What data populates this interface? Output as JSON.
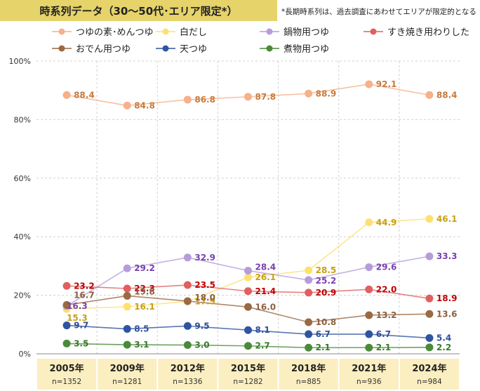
{
  "title": "時系列データ（30〜50代･エリア限定*）",
  "note": "*長期時系列は、過去調査にあわせてエリアが限定的となる",
  "chart_data": {
    "type": "line",
    "categories": [
      "2005年",
      "2009年",
      "2012年",
      "2015年",
      "2018年",
      "2021年",
      "2024年"
    ],
    "sample_sizes": [
      "n=1352",
      "n=1281",
      "n=1336",
      "n=1282",
      "n=885",
      "n=936",
      "n=984"
    ],
    "y_ticks": [
      "0%",
      "20%",
      "40%",
      "60%",
      "80%",
      "100%"
    ],
    "ylim": [
      0,
      100
    ],
    "grid": true,
    "legend_position": "top",
    "series": [
      {
        "name": "つゆの素･めんつゆ",
        "color": "#f6b08a",
        "label_color": "#c87a3a",
        "values": [
          88.4,
          84.8,
          86.8,
          87.8,
          88.9,
          92.1,
          88.4
        ]
      },
      {
        "name": "白だし",
        "color": "#fde070",
        "label_color": "#c9a012",
        "values": [
          15.3,
          16.1,
          17.9,
          26.1,
          28.5,
          44.9,
          46.1
        ]
      },
      {
        "name": "鍋物用つゆ",
        "color": "#b79cdb",
        "label_color": "#7a40b0",
        "values": [
          16.3,
          29.2,
          32.9,
          28.4,
          25.2,
          29.6,
          33.3
        ]
      },
      {
        "name": "すき焼き用わりした",
        "color": "#e06060",
        "label_color": "#c00000",
        "values": [
          23.2,
          22.3,
          23.5,
          21.4,
          20.9,
          22.0,
          18.9
        ]
      },
      {
        "name": "おでん用つゆ",
        "color": "#9a6a42",
        "label_color": "#8c6040",
        "values": [
          16.7,
          19.8,
          18.0,
          16.0,
          10.8,
          13.2,
          13.6
        ]
      },
      {
        "name": "天つゆ",
        "color": "#2f55a0",
        "label_color": "#2f4f9a",
        "values": [
          9.7,
          8.5,
          9.5,
          8.1,
          6.7,
          6.7,
          5.4
        ]
      },
      {
        "name": "煮物用つゆ",
        "color": "#4a8a3a",
        "label_color": "#3a7a2a",
        "values": [
          3.5,
          3.1,
          3.0,
          2.7,
          2.1,
          2.1,
          2.2
        ]
      }
    ]
  }
}
